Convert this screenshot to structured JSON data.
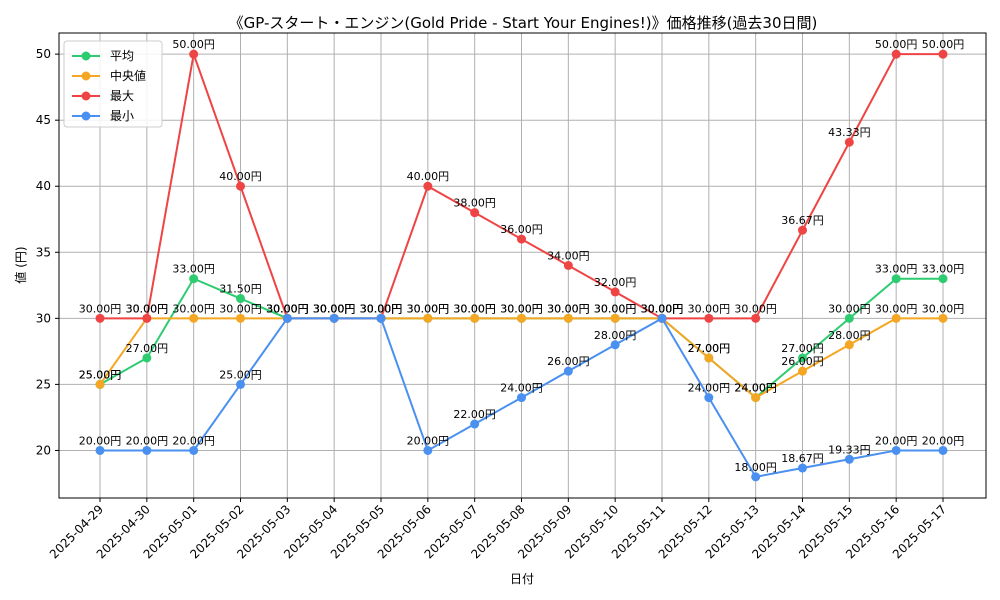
{
  "chart_data": {
    "type": "line",
    "title": "《GP-スタート・エンジン(Gold Pride - Start Your Engines!)》価格推移(過去30日間)",
    "xlabel": "日付",
    "ylabel": "値 (円)",
    "ylim": [
      16.4,
      51.6
    ],
    "yticks": [
      20,
      25,
      30,
      35,
      40,
      45,
      50
    ],
    "grid": true,
    "legend_position": "top-left",
    "value_label_suffix": "円",
    "categories": [
      "2025-04-29",
      "2025-04-30",
      "2025-05-01",
      "2025-05-02",
      "2025-05-03",
      "2025-05-04",
      "2025-05-05",
      "2025-05-06",
      "2025-05-07",
      "2025-05-08",
      "2025-05-09",
      "2025-05-10",
      "2025-05-11",
      "2025-05-12",
      "2025-05-13",
      "2025-05-14",
      "2025-05-15",
      "2025-05-16",
      "2025-05-17"
    ],
    "series": [
      {
        "name": "平均",
        "color": "#2ecc71",
        "values": [
          25.0,
          27.0,
          33.0,
          31.5,
          30.0,
          30.0,
          30.0,
          30.0,
          30.0,
          30.0,
          30.0,
          30.0,
          30.0,
          27.0,
          24.0,
          27.0,
          30.0,
          33.0,
          33.0
        ]
      },
      {
        "name": "中央値",
        "color": "#f5a623",
        "values": [
          25.0,
          30.0,
          30.0,
          30.0,
          30.0,
          30.0,
          30.0,
          30.0,
          30.0,
          30.0,
          30.0,
          30.0,
          30.0,
          27.0,
          24.0,
          26.0,
          28.0,
          30.0,
          30.0
        ]
      },
      {
        "name": "最大",
        "color": "#ef4444",
        "values": [
          30.0,
          30.0,
          50.0,
          40.0,
          30.0,
          30.0,
          30.0,
          40.0,
          38.0,
          36.0,
          34.0,
          32.0,
          30.0,
          30.0,
          30.0,
          36.67,
          43.33,
          50.0,
          50.0
        ]
      },
      {
        "name": "最小",
        "color": "#4a90f0",
        "values": [
          20.0,
          20.0,
          20.0,
          25.0,
          30.0,
          30.0,
          30.0,
          20.0,
          22.0,
          24.0,
          26.0,
          28.0,
          30.0,
          24.0,
          18.0,
          18.67,
          19.33,
          20.0,
          20.0
        ]
      }
    ]
  }
}
